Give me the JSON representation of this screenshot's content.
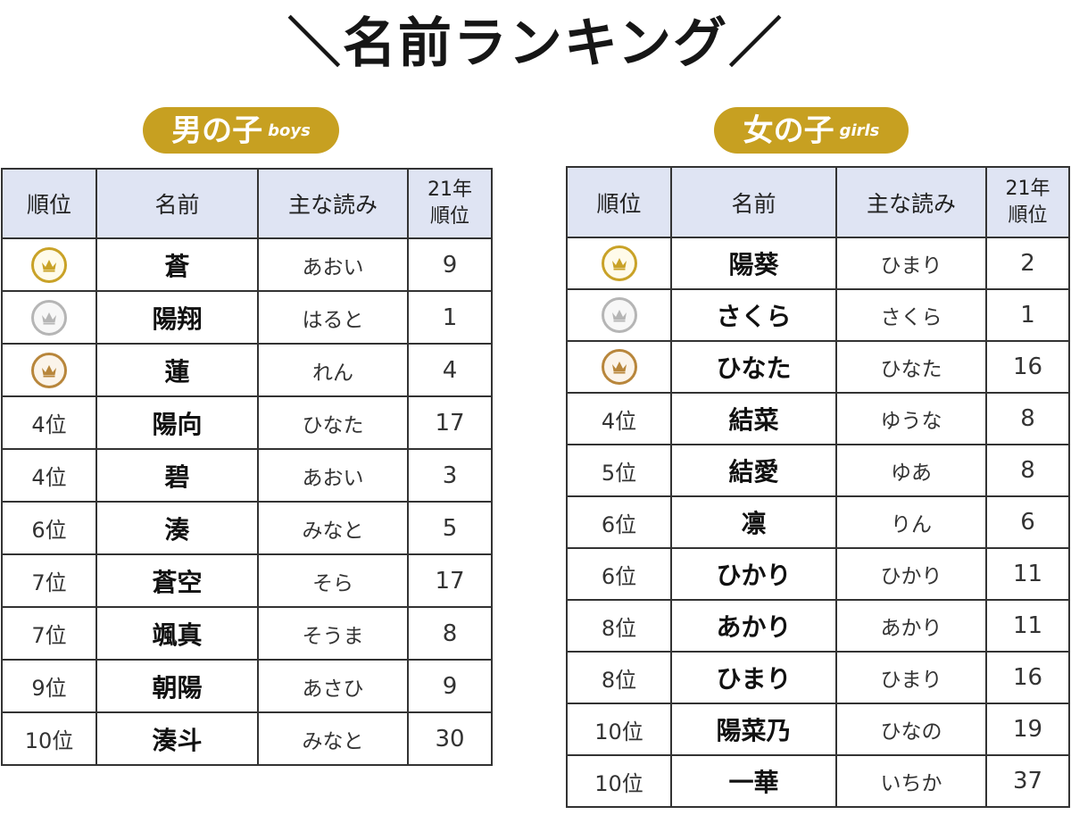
{
  "title": "＼名前ランキング／",
  "boys": {
    "badge_jp": "男の子",
    "badge_en": "boys",
    "headers": {
      "rank": "順位",
      "name": "名前",
      "reading": "主な読み",
      "prev_line1": "21年",
      "prev_line2": "順位"
    },
    "rows": [
      {
        "pos": "",
        "medal": "gold",
        "name": "蒼",
        "reading": "あおい",
        "prev": "9"
      },
      {
        "pos": "",
        "medal": "silver",
        "name": "陽翔",
        "reading": "はると",
        "prev": "1"
      },
      {
        "pos": "",
        "medal": "bronze",
        "name": "蓮",
        "reading": "れん",
        "prev": "4"
      },
      {
        "pos": "4位",
        "medal": "",
        "name": "陽向",
        "reading": "ひなた",
        "prev": "17"
      },
      {
        "pos": "4位",
        "medal": "",
        "name": "碧",
        "reading": "あおい",
        "prev": "3"
      },
      {
        "pos": "6位",
        "medal": "",
        "name": "湊",
        "reading": "みなと",
        "prev": "5"
      },
      {
        "pos": "7位",
        "medal": "",
        "name": "蒼空",
        "reading": "そら",
        "prev": "17"
      },
      {
        "pos": "7位",
        "medal": "",
        "name": "颯真",
        "reading": "そうま",
        "prev": "8"
      },
      {
        "pos": "9位",
        "medal": "",
        "name": "朝陽",
        "reading": "あさひ",
        "prev": "9"
      },
      {
        "pos": "10位",
        "medal": "",
        "name": "湊斗",
        "reading": "みなと",
        "prev": "30"
      }
    ]
  },
  "girls": {
    "badge_jp": "女の子",
    "badge_en": "girls",
    "headers": {
      "rank": "順位",
      "name": "名前",
      "reading": "主な読み",
      "prev_line1": "21年",
      "prev_line2": "順位"
    },
    "rows": [
      {
        "pos": "",
        "medal": "gold",
        "name": "陽葵",
        "reading": "ひまり",
        "prev": "2"
      },
      {
        "pos": "",
        "medal": "silver",
        "name": "さくら",
        "reading": "さくら",
        "prev": "1"
      },
      {
        "pos": "",
        "medal": "bronze",
        "name": "ひなた",
        "reading": "ひなた",
        "prev": "16"
      },
      {
        "pos": "4位",
        "medal": "",
        "name": "結菜",
        "reading": "ゆうな",
        "prev": "8"
      },
      {
        "pos": "5位",
        "medal": "",
        "name": "結愛",
        "reading": "ゆあ",
        "prev": "8"
      },
      {
        "pos": "6位",
        "medal": "",
        "name": "凛",
        "reading": "りん",
        "prev": "6"
      },
      {
        "pos": "6位",
        "medal": "",
        "name": "ひかり",
        "reading": "ひかり",
        "prev": "11"
      },
      {
        "pos": "8位",
        "medal": "",
        "name": "あかり",
        "reading": "あかり",
        "prev": "11"
      },
      {
        "pos": "8位",
        "medal": "",
        "name": "ひまり",
        "reading": "ひまり",
        "prev": "16"
      },
      {
        "pos": "10位",
        "medal": "",
        "name": "陽菜乃",
        "reading": "ひなの",
        "prev": "19"
      },
      {
        "pos": "10位",
        "medal": "",
        "name": "一華",
        "reading": "いちか",
        "prev": "37"
      }
    ]
  },
  "colors": {
    "badge": "#c7a021",
    "header_bg": "#dfe4f3",
    "gold": "#c9a227",
    "silver": "#b5b5b5",
    "bronze": "#b8863b"
  }
}
